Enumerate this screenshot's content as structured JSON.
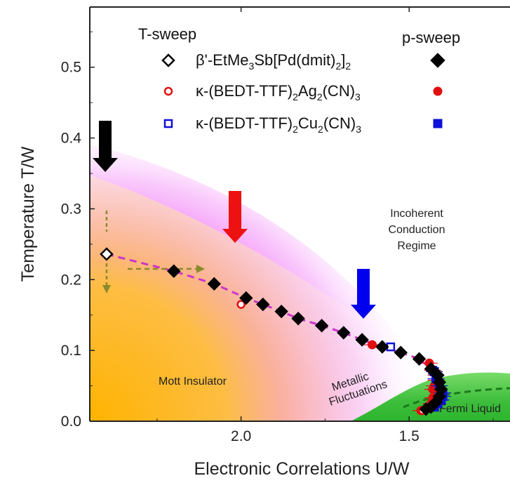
{
  "chart_data": {
    "type": "scatter",
    "xlabel": "Electronic Correlations  U/W",
    "ylabel": "Temperature  T/W",
    "x_reversed": true,
    "xlim": [
      2.45,
      1.2
    ],
    "ylim": [
      0.0,
      0.585
    ],
    "xticks": [
      {
        "v": 2.0,
        "label": "2.0"
      },
      {
        "v": 1.5,
        "label": "1.5"
      }
    ],
    "yticks": [
      {
        "v": 0.0,
        "label": "0.0"
      },
      {
        "v": 0.1,
        "label": "0.1"
      },
      {
        "v": 0.2,
        "label": "0.2"
      },
      {
        "v": 0.3,
        "label": "0.3"
      },
      {
        "v": 0.4,
        "label": "0.4"
      },
      {
        "v": 0.5,
        "label": "0.5"
      }
    ],
    "legend_headers": {
      "left": "T-sweep",
      "right": "p-sweep"
    },
    "legend_position": "top-right",
    "legend_entries": [
      {
        "series": "EtMe3Sb",
        "parts": [
          {
            "t": "β'-EtMe"
          },
          {
            "t": "3",
            "sub": true
          },
          {
            "t": "Sb[Pd(dmit)"
          },
          {
            "t": "2",
            "sub": true
          },
          {
            "t": "]"
          },
          {
            "t": "2",
            "sub": true
          }
        ]
      },
      {
        "series": "Ag2CN3",
        "parts": [
          {
            "t": "κ-(BEDT-TTF)"
          },
          {
            "t": "2",
            "sub": true
          },
          {
            "t": "Ag"
          },
          {
            "t": "2",
            "sub": true
          },
          {
            "t": "(CN)"
          },
          {
            "t": "3",
            "sub": true
          }
        ]
      },
      {
        "series": "Cu2CN3",
        "parts": [
          {
            "t": "κ-(BEDT-TTF)"
          },
          {
            "t": "2",
            "sub": true
          },
          {
            "t": "Cu"
          },
          {
            "t": "2",
            "sub": true
          },
          {
            "t": "(CN)"
          },
          {
            "t": "3",
            "sub": true
          }
        ]
      }
    ],
    "series": [
      {
        "id": "EtMe3Sb",
        "marker": "diamond",
        "color": "#000000",
        "t_sweep": [
          {
            "x": 2.4,
            "y": 0.236,
            "err": 0.03
          }
        ],
        "p_sweep": [
          [
            2.2,
            0.212
          ],
          [
            2.08,
            0.194
          ],
          [
            1.985,
            0.174
          ],
          [
            1.935,
            0.165
          ],
          [
            1.88,
            0.155
          ],
          [
            1.83,
            0.145
          ],
          [
            1.76,
            0.135
          ],
          [
            1.695,
            0.125
          ],
          [
            1.64,
            0.115
          ],
          [
            1.58,
            0.105
          ],
          [
            1.525,
            0.097
          ],
          [
            1.47,
            0.088
          ],
          [
            1.435,
            0.074
          ],
          [
            1.415,
            0.065
          ],
          [
            1.41,
            0.055
          ],
          [
            1.405,
            0.045
          ],
          [
            1.41,
            0.035
          ],
          [
            1.42,
            0.027
          ],
          [
            1.435,
            0.02
          ],
          [
            1.45,
            0.017
          ]
        ]
      },
      {
        "id": "Ag2CN3",
        "marker": "circle",
        "color": "#e01010",
        "t_sweep": [
          {
            "x": 2.0,
            "y": 0.165,
            "err": 0.014
          },
          {
            "x": 1.46,
            "y": 0.015,
            "err": 0.008
          }
        ],
        "p_sweep": [
          [
            1.61,
            0.108
          ],
          [
            1.44,
            0.082
          ],
          [
            1.43,
            0.072
          ],
          [
            1.42,
            0.065
          ],
          [
            1.42,
            0.058
          ],
          [
            1.425,
            0.05
          ],
          [
            1.43,
            0.045
          ],
          [
            1.43,
            0.033
          ],
          [
            1.435,
            0.025
          ],
          [
            1.465,
            0.015
          ]
        ]
      },
      {
        "id": "Cu2CN3",
        "marker": "square",
        "color": "#1010d8",
        "t_sweep": [
          {
            "x": 1.555,
            "y": 0.105,
            "err": 0.012
          },
          {
            "x": 1.43,
            "y": 0.072,
            "err": 0.01
          }
        ],
        "p_sweep": [
          [
            1.425,
            0.07
          ],
          [
            1.42,
            0.06
          ],
          [
            1.41,
            0.05
          ],
          [
            1.4,
            0.04
          ],
          [
            1.4,
            0.035
          ],
          [
            1.405,
            0.03
          ],
          [
            1.415,
            0.025
          ],
          [
            1.425,
            0.02
          ]
        ]
      }
    ],
    "annotations": {
      "mott": "Mott Insulator",
      "metallic_1": "Metallic",
      "metallic_2": "Fluctuations",
      "fermi": "Fermi Liquid",
      "incoherent": [
        "Incoherent",
        "Conduction",
        "Regime"
      ]
    },
    "arrows": [
      {
        "x": 2.43,
        "color": "#000000"
      },
      {
        "x": 2.0,
        "color": "#ee1111"
      },
      {
        "x": 1.565,
        "color": "#0000ee"
      }
    ],
    "colors": {
      "magenta": "#dd00ee",
      "orange": "#ffc000",
      "green": "#33c833",
      "dashed_line": "#cc33cc",
      "fermi_line": "#1a7a1a",
      "sweep_arrows": "#8a8a2a"
    }
  }
}
